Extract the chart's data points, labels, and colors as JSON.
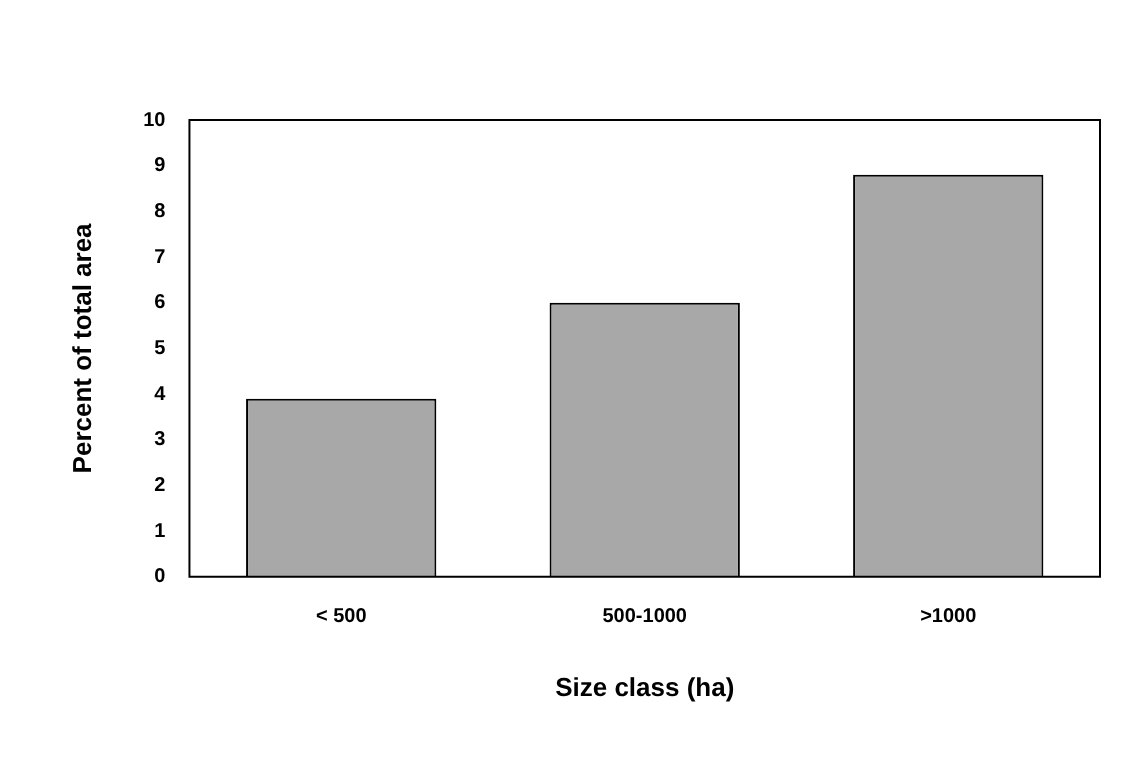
{
  "chart_data": {
    "type": "bar",
    "xlabel": "Size class (ha)",
    "ylabel": "Percent of total area",
    "categories": [
      "< 500",
      "500-1000",
      ">1000"
    ],
    "values": [
      3.9,
      6.0,
      8.8
    ],
    "color": "#a8a8a8",
    "ylim": [
      0,
      10
    ],
    "yticks": [
      0,
      1,
      2,
      3,
      4,
      5,
      6,
      7,
      8,
      9,
      10
    ],
    "grid": false,
    "legend": false
  }
}
